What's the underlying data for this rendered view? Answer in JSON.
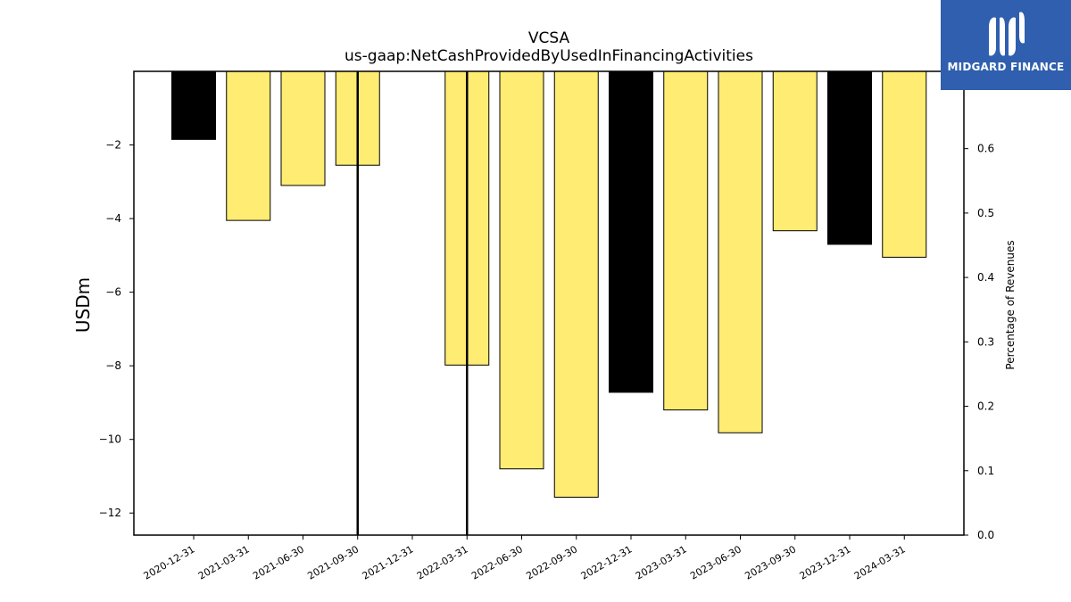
{
  "chart_data": {
    "type": "bar",
    "title": "VCSA",
    "subtitle": "us-gaap:NetCashProvidedByUsedInFinancingActivities",
    "ylabel": "USDm",
    "y2label": "Percentage of Revenues",
    "categories": [
      "2020-12-31",
      "2021-03-31",
      "2021-06-30",
      "2021-09-30",
      "2021-12-31",
      "2022-03-31",
      "2022-06-30",
      "2022-09-30",
      "2022-12-31",
      "2023-03-31",
      "2023-06-30",
      "2023-09-30",
      "2023-12-31",
      "2024-03-31"
    ],
    "values": [
      -1.85,
      -4.05,
      -3.1,
      -2.55,
      null,
      -7.98,
      -10.8,
      -11.57,
      -8.72,
      -9.2,
      -9.82,
      -4.33,
      -4.7,
      -5.05
    ],
    "bar_colors": [
      "#000000",
      "#ffec72",
      "#ffec72",
      "#ffec72",
      null,
      "#ffec72",
      "#ffec72",
      "#ffec72",
      "#000000",
      "#ffec72",
      "#ffec72",
      "#ffec72",
      "#000000",
      "#ffec72"
    ],
    "vertical_lines": [
      "2021-09-30",
      "2022-03-31"
    ],
    "ylim": [
      -12.6,
      0
    ],
    "yticks": [
      -2,
      -4,
      -6,
      -8,
      -10,
      -12
    ],
    "y2lim": [
      0,
      0.72
    ],
    "y2ticks": [
      0.0,
      0.1,
      0.2,
      0.3,
      0.4,
      0.5,
      0.6
    ],
    "grid": false
  },
  "logo": {
    "text": "MIDGARD FINANCE"
  },
  "colors": {
    "highlight": "#ffec72",
    "dark": "#000000",
    "brand": "#2f5fae"
  }
}
